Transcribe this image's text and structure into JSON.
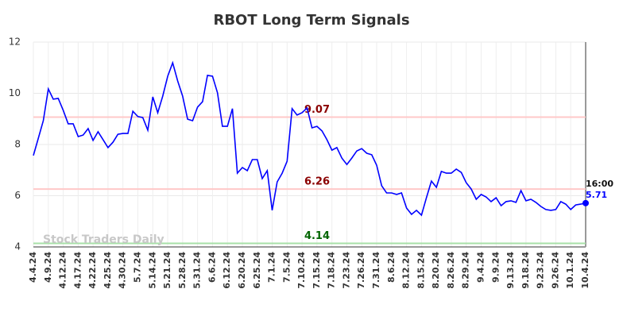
{
  "chart_data": {
    "type": "line",
    "title": "RBOT Long Term Signals",
    "watermark": "Stock Traders Daily",
    "end_time": "16:00",
    "categories": [
      "4.4.24",
      null,
      null,
      "4.9.24",
      null,
      null,
      "4.12.24",
      null,
      null,
      "4.17.24",
      null,
      null,
      "4.22.24",
      null,
      null,
      "4.25.24",
      null,
      null,
      "4.30.24",
      null,
      null,
      "5.7.24",
      null,
      null,
      "5.14.24",
      null,
      null,
      "5.21.24",
      null,
      null,
      "5.28.24",
      null,
      null,
      "5.31.24",
      null,
      null,
      "6.6.24",
      null,
      null,
      "6.12.24",
      null,
      null,
      "6.20.24",
      null,
      null,
      "6.25.24",
      null,
      null,
      "7.1.24",
      null,
      null,
      "7.5.24",
      null,
      null,
      "7.10.24",
      null,
      null,
      "7.15.24",
      null,
      null,
      "7.18.24",
      null,
      null,
      "7.23.24",
      null,
      null,
      "7.26.24",
      null,
      null,
      "7.31.24",
      null,
      null,
      "8.6.24",
      null,
      null,
      "8.12.24",
      null,
      null,
      "8.15.24",
      null,
      null,
      "8.20.24",
      null,
      null,
      "8.26.24",
      null,
      null,
      "8.29.24",
      null,
      null,
      "9.4.24",
      null,
      null,
      "9.9.24",
      null,
      null,
      "9.13.24",
      null,
      null,
      "9.18.24",
      null,
      null,
      "9.23.24",
      null,
      null,
      "9.26.24",
      null,
      null,
      "10.1.24",
      null,
      null,
      "10.4.24"
    ],
    "series": [
      {
        "name": "RBOT",
        "color": "#0000ff",
        "values": [
          7.57,
          8.25,
          8.93,
          10.17,
          9.77,
          9.8,
          9.33,
          8.81,
          8.81,
          8.31,
          8.37,
          8.62,
          8.16,
          8.5,
          8.19,
          7.88,
          8.09,
          8.4,
          8.43,
          8.43,
          9.3,
          9.09,
          9.05,
          8.56,
          9.86,
          9.24,
          9.89,
          10.67,
          11.19,
          10.48,
          9.89,
          8.99,
          8.93,
          9.46,
          9.67,
          10.7,
          10.67,
          10.02,
          8.71,
          8.71,
          9.4,
          6.88,
          7.1,
          6.98,
          7.41,
          7.41,
          6.67,
          6.98,
          5.43,
          6.54,
          6.88,
          7.35,
          9.4,
          9.15,
          9.24,
          9.43,
          8.65,
          8.71,
          8.53,
          8.19,
          7.78,
          7.88,
          7.47,
          7.22,
          7.47,
          7.75,
          7.84,
          7.66,
          7.6,
          7.19,
          6.39,
          6.11,
          6.11,
          6.05,
          6.11,
          5.52,
          5.27,
          5.43,
          5.24,
          5.92,
          6.57,
          6.33,
          6.95,
          6.88,
          6.88,
          7.04,
          6.91,
          6.51,
          6.26,
          5.86,
          6.05,
          5.95,
          5.77,
          5.92,
          5.61,
          5.77,
          5.8,
          5.74,
          6.2,
          5.8,
          5.86,
          5.74,
          5.58,
          5.46,
          5.43,
          5.46,
          5.77,
          5.67,
          5.46,
          5.64,
          5.67,
          5.71
        ]
      }
    ],
    "levels": [
      {
        "value": 9.07,
        "color": "#ffc8c8",
        "label_color": "#8b0000"
      },
      {
        "value": 6.26,
        "color": "#ffc8c8",
        "label_color": "#8b0000"
      },
      {
        "value": 4.14,
        "color": "#a8e0a8",
        "label_color": "#006400"
      }
    ],
    "ylim": [
      4,
      12
    ],
    "yticks": [
      4,
      6,
      8,
      10,
      12
    ],
    "grid": true
  }
}
